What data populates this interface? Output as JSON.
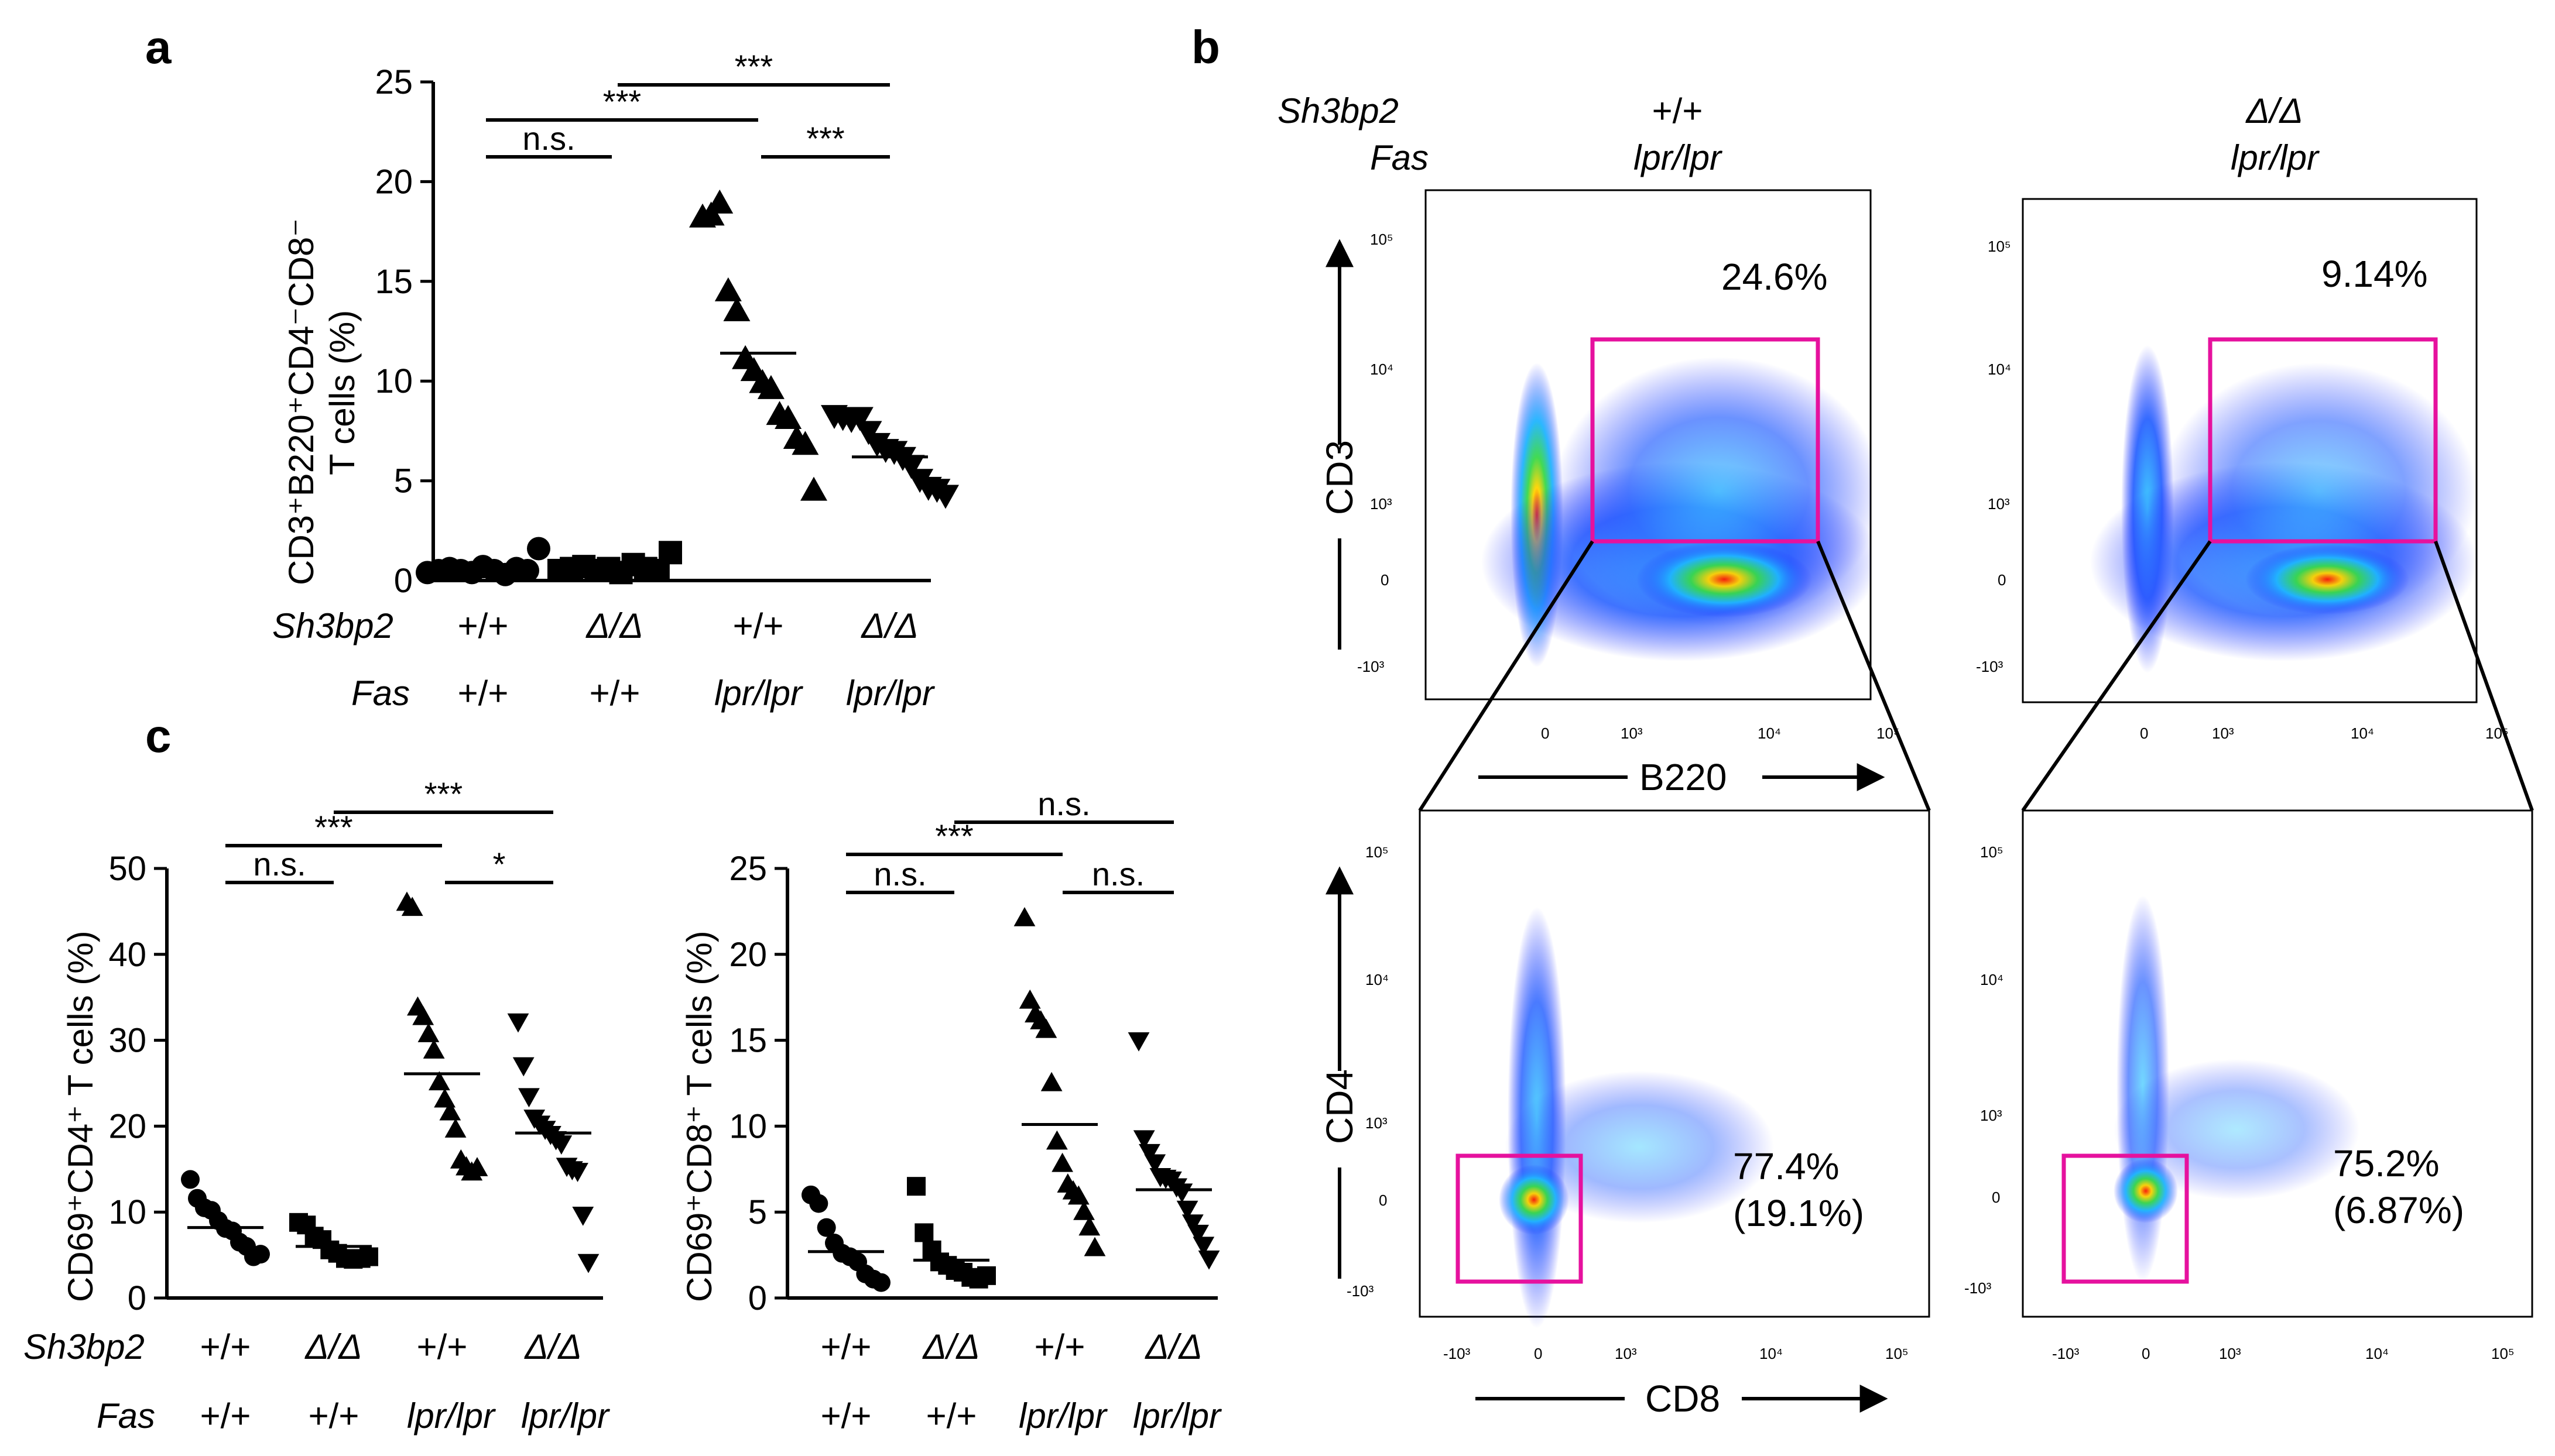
{
  "panel_labels": {
    "a": "a",
    "b": "b",
    "c": "c"
  },
  "colors": {
    "gate": "#e6119e",
    "flow_low": "#1f2bff",
    "flow_high": "#ff1a00",
    "marker": "#000000"
  },
  "sig": {
    "ns": "n.s.",
    "s3": "***",
    "s1": "*"
  },
  "groups": {
    "sh3bp2_label": "Sh3bp2",
    "fas_label": "Fas",
    "sh3bp2": [
      "+/+",
      "Δ/Δ",
      "+/+",
      "Δ/Δ"
    ],
    "fas": [
      "+/+",
      "+/+",
      "lpr/lpr",
      "lpr/lpr"
    ]
  },
  "panel_b": {
    "col1_sh3bp2": "+/+",
    "col1_fas": "lpr/lpr",
    "col2_sh3bp2": "Δ/Δ",
    "col2_fas": "lpr/lpr",
    "top_ylabel": "CD3",
    "top_xlabel": "B220",
    "bot_ylabel": "CD4",
    "bot_xlabel": "CD8",
    "top_left_pct": "24.6%",
    "top_right_pct": "9.14%",
    "bot_left_pct": "77.4%",
    "bot_left_paren": "(19.1%)",
    "bot_right_pct": "75.2%",
    "bot_right_paren": "(6.87%)",
    "ticks": {
      "e5": "10⁵",
      "e4": "10⁴",
      "e3": "10³",
      "zero": "0",
      "neg": "-10³"
    }
  },
  "chart_data": [
    {
      "type": "scatter",
      "id": "a",
      "ylabel_line1": "CD3⁺B220⁺CD4⁻CD8⁻",
      "ylabel_line2": "T cells (%)",
      "ylim": [
        0,
        25
      ],
      "yticks": [
        "0",
        "5",
        "10",
        "15",
        "20",
        "25"
      ],
      "categories": [
        "+/+ ; +/+",
        "Δ/Δ ; +/+",
        "+/+ ; lpr/lpr",
        "Δ/Δ ; lpr/lpr"
      ],
      "markers": [
        "circle",
        "square",
        "triangle-up",
        "triangle-down"
      ],
      "means": [
        0.5,
        0.6,
        11.4,
        6.2
      ],
      "series": [
        {
          "name": "+/+ ; +/+",
          "values": [
            0.4,
            0.5,
            0.6,
            0.5,
            0.4,
            0.7,
            0.5,
            0.3,
            0.6,
            0.5,
            1.6
          ]
        },
        {
          "name": "Δ/Δ ; +/+",
          "values": [
            0.5,
            0.6,
            0.7,
            0.5,
            0.6,
            0.4,
            0.8,
            0.6,
            0.5,
            1.4
          ]
        },
        {
          "name": "+/+ ; lpr/lpr",
          "values": [
            18.2,
            18.3,
            18.9,
            14.5,
            13.5,
            11.1,
            10.5,
            9.9,
            9.6,
            8.3,
            8.1,
            7.1,
            6.8,
            4.5
          ]
        },
        {
          "name": "Δ/Δ ; lpr/lpr",
          "values": [
            8.3,
            8.2,
            8.1,
            8.2,
            7.5,
            6.9,
            6.6,
            6.5,
            6.2,
            5.8,
            5.1,
            4.7,
            4.6,
            4.3
          ]
        }
      ],
      "comparisons": [
        {
          "from": 0,
          "to": 1,
          "label": "n.s."
        },
        {
          "from": 0,
          "to": 2,
          "label": "***"
        },
        {
          "from": 1,
          "to": 3,
          "label": "***"
        },
        {
          "from": 2,
          "to": 3,
          "label": "***"
        }
      ]
    },
    {
      "type": "scatter",
      "id": "c-left",
      "ylabel": "CD69⁺CD4⁺ T cells (%)",
      "ylim": [
        0,
        50
      ],
      "yticks": [
        "0",
        "10",
        "20",
        "30",
        "40",
        "50"
      ],
      "categories": [
        "+/+ ; +/+",
        "Δ/Δ ; +/+",
        "+/+ ; lpr/lpr",
        "Δ/Δ ; lpr/lpr"
      ],
      "markers": [
        "circle",
        "square",
        "triangle-up",
        "triangle-down"
      ],
      "means": [
        8.2,
        6.0,
        26.1,
        19.2
      ],
      "series": [
        {
          "name": "+/+ ; +/+",
          "values": [
            13.8,
            11.6,
            10.5,
            10.2,
            9.0,
            8.1,
            7.8,
            6.5,
            6.0,
            4.8,
            5.1
          ]
        },
        {
          "name": "Δ/Δ ; +/+",
          "values": [
            8.8,
            8.5,
            7.2,
            6.8,
            5.6,
            5.2,
            4.6,
            4.5,
            4.6,
            4.8
          ]
        },
        {
          "name": "+/+ ; lpr/lpr",
          "values": [
            46.0,
            45.4,
            33.8,
            32.7,
            30.7,
            28.8,
            25.1,
            23.1,
            21.6,
            19.6,
            16.0,
            15.2,
            14.6,
            15.1
          ]
        },
        {
          "name": "Δ/Δ ; lpr/lpr",
          "values": [
            32.2,
            27.1,
            23.5,
            21.0,
            20.3,
            19.7,
            19.1,
            18.5,
            18.0,
            15.4,
            15.0,
            14.8,
            9.7,
            4.2
          ]
        }
      ],
      "comparisons": [
        {
          "from": 0,
          "to": 1,
          "label": "n.s."
        },
        {
          "from": 0,
          "to": 2,
          "label": "***"
        },
        {
          "from": 1,
          "to": 3,
          "label": "***"
        },
        {
          "from": 2,
          "to": 3,
          "label": "*"
        }
      ]
    },
    {
      "type": "scatter",
      "id": "c-right",
      "ylabel": "CD69⁺CD8⁺ T cells (%)",
      "ylim": [
        0,
        25
      ],
      "yticks": [
        "0",
        "5",
        "10",
        "15",
        "20",
        "25"
      ],
      "categories": [
        "+/+ ; +/+",
        "Δ/Δ ; +/+",
        "+/+ ; lpr/lpr",
        "Δ/Δ ; lpr/lpr"
      ],
      "markers": [
        "circle",
        "square",
        "triangle-up",
        "triangle-down"
      ],
      "means": [
        2.7,
        2.2,
        10.1,
        6.3
      ],
      "series": [
        {
          "name": "+/+ ; +/+",
          "values": [
            6.0,
            5.5,
            4.1,
            3.2,
            2.6,
            2.4,
            2.1,
            1.4,
            1.1,
            0.9
          ]
        },
        {
          "name": "Δ/Δ ; +/+",
          "values": [
            6.5,
            3.8,
            2.8,
            2.1,
            1.9,
            1.6,
            1.5,
            1.2,
            1.1,
            1.3
          ]
        },
        {
          "name": "+/+ ; lpr/lpr",
          "values": [
            22.1,
            17.3,
            16.5,
            16.1,
            15.6,
            12.5,
            9.1,
            7.8,
            6.6,
            6.2,
            5.9,
            5.0,
            4.1,
            2.9
          ]
        },
        {
          "name": "Δ/Δ ; lpr/lpr",
          "values": [
            15.0,
            9.3,
            8.5,
            7.9,
            7.1,
            7.0,
            6.9,
            6.5,
            6.2,
            5.2,
            4.4,
            3.8,
            3.1,
            2.3
          ]
        }
      ],
      "comparisons": [
        {
          "from": 0,
          "to": 1,
          "label": "n.s."
        },
        {
          "from": 0,
          "to": 2,
          "label": "***"
        },
        {
          "from": 1,
          "to": 3,
          "label": "n.s."
        },
        {
          "from": 2,
          "to": 3,
          "label": "n.s."
        }
      ]
    }
  ]
}
